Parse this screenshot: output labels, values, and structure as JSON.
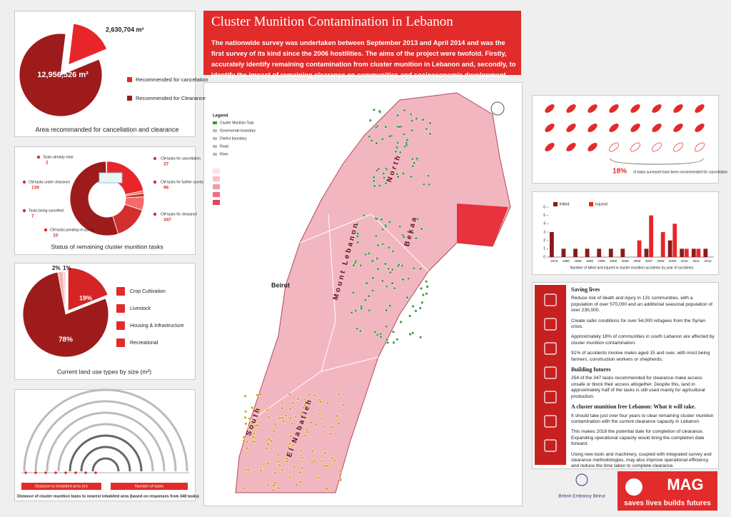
{
  "header": {
    "title": "Cluster Munition Contamination in Lebanon",
    "text": "The nationwide survey was undertaken between September 2013 and April 2014 and was the first survey of its kind since the 2006 hostilities. The aims of the project were twofold. Firstly, accurately identify remaining contamination from cluster munition in Lebanon and, secondly, to identify the impact of remaining clearance on communities and socioeconomic development."
  },
  "area_chart": {
    "type": "pie",
    "title": "Area recommanded for cancellation and clearance",
    "series": [
      {
        "name": "Recommended for cancelation",
        "value": 2630704,
        "label": "2,630,704 m²",
        "color": "#e8262a"
      },
      {
        "name": "Recommended for Clearance",
        "value": 12956526,
        "label": "12,956,526 m²",
        "color": "#9e1b1b"
      }
    ]
  },
  "tasks_chart": {
    "type": "donut",
    "title": "Status of remaining cluster munition tasks",
    "series": [
      {
        "name": "Tasks already clear",
        "value": 2,
        "color": "#f4a6a6"
      },
      {
        "name": "CM tasks under clearance",
        "value": 139,
        "color": "#e8262a"
      },
      {
        "name": "Tasks being cancelled",
        "value": 7,
        "color": "#f07070"
      },
      {
        "name": "CM tasks pending re-survey",
        "value": 10,
        "color": "#c0392b"
      },
      {
        "name": "CM tasks for cancellation",
        "value": 37,
        "color": "#f26b6b"
      },
      {
        "name": "CM tasks for further survey",
        "value": 96,
        "color": "#d32f2f"
      },
      {
        "name": "CM tasks for clearance",
        "value": 347,
        "color": "#9e1b1b"
      }
    ]
  },
  "landuse_chart": {
    "type": "pie",
    "title": "Current land use types by size (m²)",
    "series": [
      {
        "name": "Housing & Infrastructure",
        "value": 2,
        "label": "2%",
        "color": "#f4b4b4"
      },
      {
        "name": "Recreational",
        "value": 1,
        "label": "1%",
        "color": "#f8d0d0"
      },
      {
        "name": "Livestock",
        "value": 19,
        "label": "19%",
        "color": "#d42424"
      },
      {
        "name": "Crop Cultivation",
        "value": 78,
        "label": "78%",
        "color": "#9e1b1b"
      }
    ]
  },
  "distance_panel": {
    "caption": "Distance of cluster munition tasks to nearest inhabited area (based on responses from 348 tasks)",
    "legend": [
      "Distance to inhabited area (m)",
      "Number of tasks"
    ]
  },
  "map": {
    "labels": [
      "North",
      "Mount Lebanon",
      "Bekaa",
      "South",
      "El Nabatieh",
      "Beirut"
    ],
    "legend_title": "Legend",
    "legend": [
      "Cluster Munition Task",
      "Governorate boundary",
      "District boundary",
      "Road",
      "River"
    ]
  },
  "cancel_panel": {
    "value": 18,
    "label": "18%",
    "caption": "of tasks surveyed have been recommended for cancellation"
  },
  "bar_chart": {
    "type": "bar",
    "caption": "Number of killed and injured in cluster munition accidents by year of accidents",
    "categories": [
      "1975",
      "1980",
      "1985",
      "1990",
      "1995",
      "2000",
      "2005",
      "2006",
      "2007",
      "2008",
      "2009",
      "2010",
      "2011",
      "2012"
    ],
    "series": [
      {
        "name": "Killed",
        "color": "#8b1a1a",
        "values": [
          3,
          1,
          1,
          1,
          1,
          1,
          1,
          0,
          1,
          0,
          2,
          1,
          1,
          1
        ]
      },
      {
        "name": "Injured",
        "color": "#e8262a",
        "values": [
          0,
          0,
          0,
          0,
          0,
          0,
          0,
          2,
          5,
          3,
          4,
          1,
          1,
          0
        ]
      }
    ],
    "ylim": [
      0,
      6
    ],
    "yticks": [
      0,
      1,
      2,
      3,
      4,
      5,
      6
    ]
  },
  "text_panel": {
    "sections": [
      {
        "heading": "Saving lives",
        "paragraphs": [
          "Reduce risk of death and injury in 131 communities, with a population of over 570,000 and an additional seasonal population of over 230,000.",
          "Create safer conditions for over 54,000 refugees from the Syrian crisis.",
          "Approximately 18% of communities in south Lebanon are affected by cluster munition contamination.",
          "91% of accidents involve males aged 15 and over, with most being farmers, construction workers or shepherds."
        ]
      },
      {
        "heading": "Building futures",
        "paragraphs": [
          "254 of the 347 tasks recommended for clearance make access unsafe or block their access altogether. Despite this, land in approximately half of the tasks is still used mainly for agricultural production."
        ]
      },
      {
        "heading": "A cluster munition free Lebanon: What it will take.",
        "paragraphs": [
          "It should take just over four years to clear remaining cluster munition contamination with the current clearance capacity in Lebanon.",
          "This makes 2018 the potential date for completion of clearance. Expanding operational capacity would bring the completion date forward.",
          "Using new tools and machinery, coupled with integrated survey and clearance methodologies, may also improve operational efficiency and reduce the time taken to complete clearance."
        ]
      }
    ]
  },
  "footer": {
    "embassy": "British Embassy Beirut",
    "logo": "MAG",
    "slogan": "saves lives builds futures"
  }
}
